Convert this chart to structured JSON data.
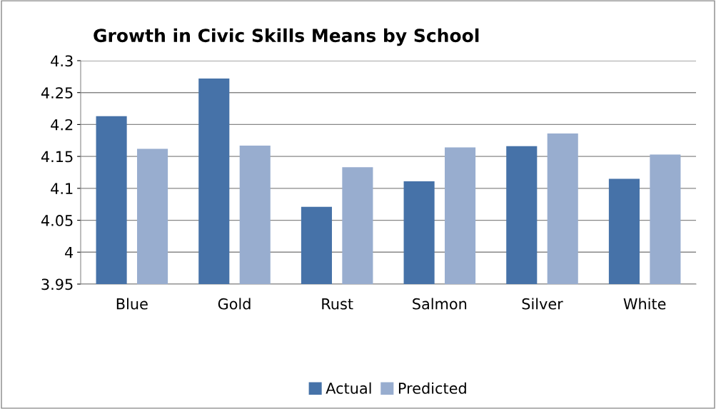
{
  "chart_data": {
    "type": "bar",
    "title": "Growth in Civic Skills Means by School",
    "categories": [
      "Blue",
      "Gold",
      "Rust",
      "Salmon",
      "Silver",
      "White"
    ],
    "series": [
      {
        "name": "Actual",
        "color": "#4672a8",
        "values": [
          4.213,
          4.272,
          4.071,
          4.111,
          4.166,
          4.115
        ]
      },
      {
        "name": "Predicted",
        "color": "#98adcf",
        "values": [
          4.162,
          4.167,
          4.133,
          4.164,
          4.186,
          4.153
        ]
      }
    ],
    "ylim": [
      3.95,
      4.3
    ],
    "yticks": [
      3.95,
      4,
      4.05,
      4.1,
      4.15,
      4.2,
      4.25,
      4.3
    ],
    "grid": "y",
    "legend": "bottom"
  }
}
